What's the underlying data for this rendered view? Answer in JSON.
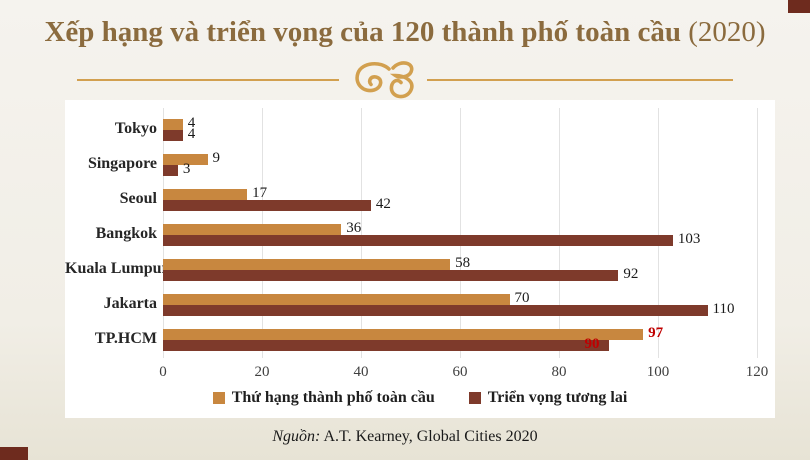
{
  "title": {
    "main": "Xếp hạng và triển vọng của 120 thành phố toàn cầu",
    "year": " (2020)"
  },
  "source": {
    "label": "Nguồn:",
    "text": " A.T. Kearney, Global Cities 2020"
  },
  "colors": {
    "title": "#8B6B3E",
    "divider_gold": "#D2A04F",
    "series_rank": "#C8873F",
    "series_outlook": "#7E3A2B",
    "highlight_value": "#C00000",
    "corner_accent": "#6E2B1E",
    "panel_background": "#FFFFFF"
  },
  "chart_data": {
    "type": "bar",
    "orientation": "horizontal",
    "title": "Xếp hạng và triển vọng của 120 thành phố toàn cầu (2020)",
    "categories": [
      "Tokyo",
      "Singapore",
      "Seoul",
      "Bangkok",
      "Kuala Lumpur",
      "Jakarta",
      "TP.HCM"
    ],
    "series": [
      {
        "name": "Thứ hạng thành phố toàn cầu",
        "color": "#C8873F",
        "values": [
          4,
          9,
          17,
          36,
          58,
          70,
          97
        ]
      },
      {
        "name": "Triển vọng tương lai",
        "color": "#7E3A2B",
        "values": [
          4,
          3,
          42,
          103,
          92,
          110,
          90
        ]
      }
    ],
    "xlim": [
      0,
      120
    ],
    "x_ticks": [
      0,
      20,
      40,
      60,
      80,
      100,
      120
    ],
    "grid": true,
    "legend_position": "bottom",
    "highlighted_category": "TP.HCM",
    "highlighted_value_color": "#C00000"
  }
}
